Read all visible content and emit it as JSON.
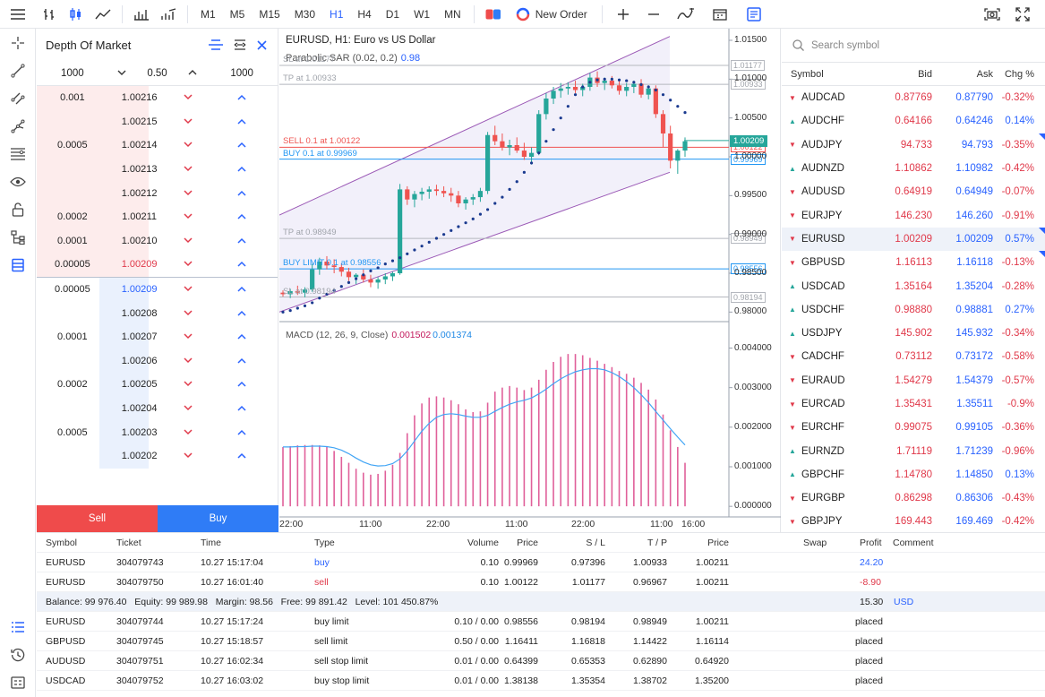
{
  "toolbar": {
    "timeframes": [
      "M1",
      "M5",
      "M15",
      "M30",
      "H1",
      "H4",
      "D1",
      "W1",
      "MN"
    ],
    "active_timeframe": "H1",
    "new_order_label": "New Order"
  },
  "dom": {
    "title": "Depth Of Market",
    "settings": {
      "left": "1000",
      "step": "0.50",
      "right": "1000"
    },
    "asks": [
      {
        "vol": "0.001",
        "price": "1.00216"
      },
      {
        "vol": "",
        "price": "1.00215"
      },
      {
        "vol": "0.0005",
        "price": "1.00214"
      },
      {
        "vol": "",
        "price": "1.00213"
      },
      {
        "vol": "",
        "price": "1.00212"
      },
      {
        "vol": "0.0002",
        "price": "1.00211"
      },
      {
        "vol": "0.0001",
        "price": "1.00210"
      },
      {
        "vol": "0.00005",
        "price": "1.00209"
      }
    ],
    "bids": [
      {
        "vol": "0.00005",
        "price": "1.00209"
      },
      {
        "vol": "",
        "price": "1.00208"
      },
      {
        "vol": "0.0001",
        "price": "1.00207"
      },
      {
        "vol": "",
        "price": "1.00206"
      },
      {
        "vol": "0.0002",
        "price": "1.00205"
      },
      {
        "vol": "",
        "price": "1.00204"
      },
      {
        "vol": "0.0005",
        "price": "1.00203"
      },
      {
        "vol": "",
        "price": "1.00202"
      }
    ],
    "sell_label": "Sell",
    "buy_label": "Buy"
  },
  "chart": {
    "title": "EURUSD, H1: Euro vs US Dollar",
    "indicator": "Parabolic SAR (0.02, 0.2)",
    "indicator_value": "0.98",
    "macd_title": "MACD (12, 26, 9, Close)",
    "macd_value1": "0.001502",
    "macd_value2": "0.001374",
    "price_ticks": [
      "1.01500",
      "1.01000",
      "1.00500",
      "1.00000",
      "0.99500",
      "0.99000",
      "0.98500",
      "0.98000"
    ],
    "macd_ticks": [
      "0.004000",
      "0.003000",
      "0.002000",
      "0.001000",
      "0.000000"
    ],
    "time_ticks": [
      "22:00",
      "11:00",
      "22:00",
      "11:00",
      "22:00",
      "11:00",
      "16:00"
    ],
    "levels": {
      "sl": {
        "label": "SL at 1.01177",
        "price": "1.01177"
      },
      "tp": {
        "label": "TP at 1.00933",
        "price": "1.00933"
      },
      "sell": {
        "label": "SELL 0.1 at 1.00122",
        "price": "1.00122"
      },
      "buy": {
        "label": "BUY 0.1 at 0.99969",
        "price": "0.99969"
      },
      "tp2": {
        "label": "TP at 0.98949",
        "price": "0.98949"
      },
      "buy_limit": {
        "label": "BUY LIMIT 0.1 at 0.98556",
        "price": "0.98556"
      },
      "sl2": {
        "label": "SL at 0.98194",
        "price": "0.98194"
      },
      "current": "1.00209"
    }
  },
  "chart_data": {
    "type": "candlestick",
    "ylim": [
      0.979,
      1.0165
    ],
    "macd_ylim": [
      -0.0002,
      0.0046
    ],
    "candles": [
      [
        0.9825,
        0.9828,
        0.982,
        0.9823
      ],
      [
        0.9823,
        0.983,
        0.9818,
        0.9827
      ],
      [
        0.9827,
        0.9834,
        0.9822,
        0.9825
      ],
      [
        0.9825,
        0.9832,
        0.9819,
        0.9829
      ],
      [
        0.9829,
        0.9862,
        0.9826,
        0.9855
      ],
      [
        0.9855,
        0.987,
        0.9848,
        0.9865
      ],
      [
        0.9865,
        0.9872,
        0.9855,
        0.986
      ],
      [
        0.986,
        0.9868,
        0.985,
        0.9858
      ],
      [
        0.9858,
        0.9863,
        0.9846,
        0.9852
      ],
      [
        0.9852,
        0.9857,
        0.984,
        0.9845
      ],
      [
        0.9845,
        0.985,
        0.9836,
        0.9848
      ],
      [
        0.9848,
        0.9855,
        0.9838,
        0.9842
      ],
      [
        0.9842,
        0.9848,
        0.9832,
        0.9838
      ],
      [
        0.9838,
        0.9845,
        0.983,
        0.9842
      ],
      [
        0.9842,
        0.985,
        0.9836,
        0.9846
      ],
      [
        0.9846,
        0.9852,
        0.984,
        0.985
      ],
      [
        0.985,
        0.9965,
        0.9848,
        0.9958
      ],
      [
        0.9958,
        0.9962,
        0.9938,
        0.9945
      ],
      [
        0.9945,
        0.9956,
        0.9935,
        0.9952
      ],
      [
        0.9952,
        0.996,
        0.9944,
        0.9955
      ],
      [
        0.9955,
        0.9962,
        0.9946,
        0.9958
      ],
      [
        0.9958,
        0.9964,
        0.995,
        0.9956
      ],
      [
        0.9956,
        0.9962,
        0.9948,
        0.9953
      ],
      [
        0.9953,
        0.996,
        0.9942,
        0.995
      ],
      [
        0.995,
        0.9956,
        0.9935,
        0.994
      ],
      [
        0.994,
        0.9948,
        0.9932,
        0.9945
      ],
      [
        0.9945,
        0.9952,
        0.9938,
        0.9948
      ],
      [
        0.9948,
        0.996,
        0.9942,
        0.9956
      ],
      [
        0.9956,
        1.0032,
        0.9952,
        1.0028
      ],
      [
        1.0028,
        1.004,
        1.0015,
        1.002
      ],
      [
        1.002,
        1.003,
        1.0008,
        1.0012
      ],
      [
        1.0012,
        1.0022,
        1.0002,
        1.0015
      ],
      [
        1.0015,
        1.0025,
        1.0005,
        1.0008
      ],
      [
        1.0008,
        1.0018,
        0.9996,
        1.0
      ],
      [
        1.0,
        1.0012,
        0.999,
        1.0005
      ],
      [
        1.0005,
        1.006,
        1.0002,
        1.0055
      ],
      [
        1.0055,
        1.0082,
        1.0048,
        1.0075
      ],
      [
        1.0075,
        1.009,
        1.0068,
        1.0085
      ],
      [
        1.0085,
        1.0095,
        1.0076,
        1.0088
      ],
      [
        1.0088,
        1.0096,
        1.008,
        1.009
      ],
      [
        1.009,
        1.0098,
        1.0082,
        1.0086
      ],
      [
        1.0086,
        1.0094,
        1.0078,
        1.009
      ],
      [
        1.009,
        1.0108,
        1.0085,
        1.0102
      ],
      [
        1.0102,
        1.011,
        1.009,
        1.0095
      ],
      [
        1.0095,
        1.0102,
        1.0086,
        1.0098
      ],
      [
        1.0098,
        1.0104,
        1.0088,
        1.0092
      ],
      [
        1.0092,
        1.0098,
        1.008,
        1.0085
      ],
      [
        1.0085,
        1.0095,
        1.0078,
        1.009
      ],
      [
        1.009,
        1.0098,
        1.0082,
        1.0094
      ],
      [
        1.0094,
        1.01,
        1.0076,
        1.008
      ],
      [
        1.008,
        1.0092,
        1.0074,
        1.0088
      ],
      [
        1.0088,
        1.0092,
        1.005,
        1.0055
      ],
      [
        1.0055,
        1.006,
        1.0012,
        1.003
      ],
      [
        1.003,
        1.004,
        0.9985,
        0.9995
      ],
      [
        0.9995,
        1.001,
        0.9978,
        1.0008
      ],
      [
        1.0008,
        1.0025,
        1.0,
        1.002
      ]
    ],
    "sar": [
      0.98,
      0.9802,
      0.9805,
      0.9808,
      0.9812,
      0.9818,
      0.9823,
      0.9828,
      0.9833,
      0.9838,
      0.9843,
      0.9848,
      0.9853,
      0.9857,
      0.9862,
      0.9866,
      0.987,
      0.9875,
      0.988,
      0.9885,
      0.989,
      0.9895,
      0.99,
      0.9905,
      0.991,
      0.9915,
      0.992,
      0.9926,
      0.9932,
      0.994,
      0.9948,
      0.9958,
      0.9968,
      0.998,
      0.9992,
      1.0005,
      1.002,
      1.0035,
      1.005,
      1.0065,
      1.008,
      1.009,
      1.0096,
      1.0099,
      1.01,
      1.01,
      1.0099,
      1.0098,
      1.0096,
      1.0093,
      1.009,
      1.0086,
      1.008,
      1.0073,
      1.0065,
      1.0057
    ],
    "macd_hist": [
      0.0015,
      0.00152,
      0.00154,
      0.00155,
      0.00155,
      0.00154,
      0.0015,
      0.0014,
      0.00125,
      0.0011,
      0.00095,
      0.00085,
      0.0008,
      0.00082,
      0.0009,
      0.00105,
      0.00135,
      0.00185,
      0.0023,
      0.0026,
      0.00275,
      0.00278,
      0.00275,
      0.00268,
      0.00258,
      0.00245,
      0.00238,
      0.0024,
      0.00262,
      0.0029,
      0.003,
      0.00304,
      0.003,
      0.00294,
      0.003,
      0.0032,
      0.00345,
      0.00365,
      0.00378,
      0.00385,
      0.00385,
      0.00382,
      0.00375,
      0.00368,
      0.0036,
      0.00352,
      0.00342,
      0.00335,
      0.00325,
      0.00312,
      0.00295,
      0.0027,
      0.00232,
      0.00192,
      0.0015,
      0.0011
    ],
    "macd_signal": [
      0.0015,
      0.0015,
      0.00151,
      0.00151,
      0.00152,
      0.00152,
      0.00151,
      0.00148,
      0.00142,
      0.00133,
      0.00122,
      0.00112,
      0.00105,
      0.00102,
      0.00103,
      0.00108,
      0.0012,
      0.0014,
      0.00165,
      0.0019,
      0.0021,
      0.00225,
      0.00232,
      0.00234,
      0.00232,
      0.00228,
      0.00225,
      0.00225,
      0.0023,
      0.0024,
      0.0025,
      0.00258,
      0.00264,
      0.00268,
      0.00274,
      0.00284,
      0.00296,
      0.0031,
      0.00322,
      0.00332,
      0.0034,
      0.00345,
      0.00348,
      0.00348,
      0.00345,
      0.00338,
      0.00328,
      0.00315,
      0.003,
      0.00282,
      0.00262,
      0.0024,
      0.00218,
      0.00196,
      0.00175,
      0.00155
    ]
  },
  "watchlist": {
    "search_placeholder": "Search symbol",
    "headers": {
      "symbol": "Symbol",
      "bid": "Bid",
      "ask": "Ask",
      "chg": "Chg %"
    },
    "rows": [
      {
        "symbol": "AUDCAD",
        "bid": "0.87769",
        "ask": "0.87790",
        "chg": "-0.32%",
        "dir": "dn"
      },
      {
        "symbol": "AUDCHF",
        "bid": "0.64166",
        "ask": "0.64246",
        "chg": "0.14%",
        "dir": "up"
      },
      {
        "symbol": "AUDJPY",
        "bid": "94.733",
        "ask": "94.793",
        "chg": "-0.35%",
        "dir": "dn"
      },
      {
        "symbol": "AUDNZD",
        "bid": "1.10862",
        "ask": "1.10982",
        "chg": "-0.42%",
        "dir": "up"
      },
      {
        "symbol": "AUDUSD",
        "bid": "0.64919",
        "ask": "0.64949",
        "chg": "-0.07%",
        "dir": "dn"
      },
      {
        "symbol": "EURJPY",
        "bid": "146.230",
        "ask": "146.260",
        "chg": "-0.91%",
        "dir": "dn"
      },
      {
        "symbol": "EURUSD",
        "bid": "1.00209",
        "ask": "1.00209",
        "chg": "0.57%",
        "dir": "dn"
      },
      {
        "symbol": "GBPUSD",
        "bid": "1.16113",
        "ask": "1.16118",
        "chg": "-0.13%",
        "dir": "dn"
      },
      {
        "symbol": "USDCAD",
        "bid": "1.35164",
        "ask": "1.35204",
        "chg": "-0.28%",
        "dir": "up"
      },
      {
        "symbol": "USDCHF",
        "bid": "0.98880",
        "ask": "0.98881",
        "chg": "0.27%",
        "dir": "up"
      },
      {
        "symbol": "USDJPY",
        "bid": "145.902",
        "ask": "145.932",
        "chg": "-0.34%",
        "dir": "up"
      },
      {
        "symbol": "CADCHF",
        "bid": "0.73112",
        "ask": "0.73172",
        "chg": "-0.58%",
        "dir": "dn"
      },
      {
        "symbol": "EURAUD",
        "bid": "1.54279",
        "ask": "1.54379",
        "chg": "-0.57%",
        "dir": "dn"
      },
      {
        "symbol": "EURCAD",
        "bid": "1.35431",
        "ask": "1.35511",
        "chg": "-0.9%",
        "dir": "dn"
      },
      {
        "symbol": "EURCHF",
        "bid": "0.99075",
        "ask": "0.99105",
        "chg": "-0.36%",
        "dir": "dn"
      },
      {
        "symbol": "EURNZD",
        "bid": "1.71119",
        "ask": "1.71239",
        "chg": "-0.96%",
        "dir": "up"
      },
      {
        "symbol": "GBPCHF",
        "bid": "1.14780",
        "ask": "1.14850",
        "chg": "0.13%",
        "dir": "up"
      },
      {
        "symbol": "EURGBP",
        "bid": "0.86298",
        "ask": "0.86306",
        "chg": "-0.43%",
        "dir": "dn"
      },
      {
        "symbol": "GBPJPY",
        "bid": "169.443",
        "ask": "169.469",
        "chg": "-0.42%",
        "dir": "dn"
      }
    ]
  },
  "trades": {
    "headers": {
      "symbol": "Symbol",
      "ticket": "Ticket",
      "time": "Time",
      "type": "Type",
      "volume": "Volume",
      "price": "Price",
      "sl": "S / L",
      "tp": "T / P",
      "current": "Price",
      "swap": "Swap",
      "profit": "Profit",
      "comment": "Comment"
    },
    "positions": [
      {
        "symbol": "EURUSD",
        "ticket": "304079743",
        "time": "10.27 15:17:04",
        "type": "buy",
        "volume": "0.10",
        "price": "0.99969",
        "sl": "0.97396",
        "tp": "1.00933",
        "current": "1.00211",
        "profit": "24.20"
      },
      {
        "symbol": "EURUSD",
        "ticket": "304079750",
        "time": "10.27 16:01:40",
        "type": "sell",
        "volume": "0.10",
        "price": "1.00122",
        "sl": "1.01177",
        "tp": "0.96967",
        "current": "1.00211",
        "profit": "-8.90"
      }
    ],
    "balance": {
      "text": "Balance: 99 976.40   Equity: 99 989.98   Margin: 98.56   Free: 99 891.42   Level: 101 450.87%",
      "profit": "15.30",
      "currency": "USD"
    },
    "orders": [
      {
        "symbol": "EURUSD",
        "ticket": "304079744",
        "time": "10.27 15:17:24",
        "type": "buy limit",
        "volume": "0.10 / 0.00",
        "price": "0.98556",
        "sl": "0.98194",
        "tp": "0.98949",
        "current": "1.00211",
        "status": "placed"
      },
      {
        "symbol": "GBPUSD",
        "ticket": "304079745",
        "time": "10.27 15:18:57",
        "type": "sell limit",
        "volume": "0.50 / 0.00",
        "price": "1.16411",
        "sl": "1.16818",
        "tp": "1.14422",
        "current": "1.16114",
        "status": "placed"
      },
      {
        "symbol": "AUDUSD",
        "ticket": "304079751",
        "time": "10.27 16:02:34",
        "type": "sell stop limit",
        "volume": "0.01 / 0.00",
        "price": "0.64399",
        "sl": "0.65353",
        "tp": "0.62890",
        "current": "0.64920",
        "status": "placed"
      },
      {
        "symbol": "USDCAD",
        "ticket": "304079752",
        "time": "10.27 16:03:02",
        "type": "buy stop limit",
        "volume": "0.01 / 0.00",
        "price": "1.38138",
        "sl": "1.35354",
        "tp": "1.38702",
        "current": "1.35200",
        "status": "placed"
      }
    ]
  }
}
